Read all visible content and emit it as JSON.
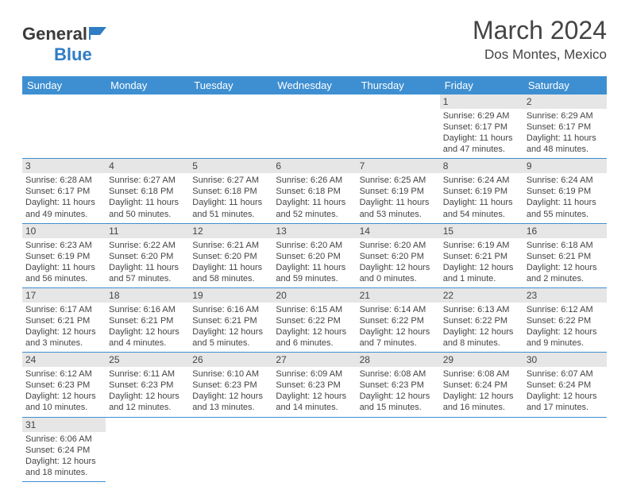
{
  "brand": {
    "name_a": "General",
    "name_b": "Blue"
  },
  "header": {
    "month_title": "March 2024",
    "location": "Dos Montes, Mexico"
  },
  "colors": {
    "header_bg": "#3e8fd1",
    "header_text": "#ffffff",
    "daynum_bg": "#e6e6e6",
    "border": "#3e8fd1",
    "text": "#444444",
    "logo_blue": "#2f7dc4"
  },
  "weekdays": [
    "Sunday",
    "Monday",
    "Tuesday",
    "Wednesday",
    "Thursday",
    "Friday",
    "Saturday"
  ],
  "leading_blanks": 5,
  "days": [
    {
      "n": "1",
      "sunrise": "Sunrise: 6:29 AM",
      "sunset": "Sunset: 6:17 PM",
      "day1": "Daylight: 11 hours",
      "day2": "and 47 minutes."
    },
    {
      "n": "2",
      "sunrise": "Sunrise: 6:29 AM",
      "sunset": "Sunset: 6:17 PM",
      "day1": "Daylight: 11 hours",
      "day2": "and 48 minutes."
    },
    {
      "n": "3",
      "sunrise": "Sunrise: 6:28 AM",
      "sunset": "Sunset: 6:17 PM",
      "day1": "Daylight: 11 hours",
      "day2": "and 49 minutes."
    },
    {
      "n": "4",
      "sunrise": "Sunrise: 6:27 AM",
      "sunset": "Sunset: 6:18 PM",
      "day1": "Daylight: 11 hours",
      "day2": "and 50 minutes."
    },
    {
      "n": "5",
      "sunrise": "Sunrise: 6:27 AM",
      "sunset": "Sunset: 6:18 PM",
      "day1": "Daylight: 11 hours",
      "day2": "and 51 minutes."
    },
    {
      "n": "6",
      "sunrise": "Sunrise: 6:26 AM",
      "sunset": "Sunset: 6:18 PM",
      "day1": "Daylight: 11 hours",
      "day2": "and 52 minutes."
    },
    {
      "n": "7",
      "sunrise": "Sunrise: 6:25 AM",
      "sunset": "Sunset: 6:19 PM",
      "day1": "Daylight: 11 hours",
      "day2": "and 53 minutes."
    },
    {
      "n": "8",
      "sunrise": "Sunrise: 6:24 AM",
      "sunset": "Sunset: 6:19 PM",
      "day1": "Daylight: 11 hours",
      "day2": "and 54 minutes."
    },
    {
      "n": "9",
      "sunrise": "Sunrise: 6:24 AM",
      "sunset": "Sunset: 6:19 PM",
      "day1": "Daylight: 11 hours",
      "day2": "and 55 minutes."
    },
    {
      "n": "10",
      "sunrise": "Sunrise: 6:23 AM",
      "sunset": "Sunset: 6:19 PM",
      "day1": "Daylight: 11 hours",
      "day2": "and 56 minutes."
    },
    {
      "n": "11",
      "sunrise": "Sunrise: 6:22 AM",
      "sunset": "Sunset: 6:20 PM",
      "day1": "Daylight: 11 hours",
      "day2": "and 57 minutes."
    },
    {
      "n": "12",
      "sunrise": "Sunrise: 6:21 AM",
      "sunset": "Sunset: 6:20 PM",
      "day1": "Daylight: 11 hours",
      "day2": "and 58 minutes."
    },
    {
      "n": "13",
      "sunrise": "Sunrise: 6:20 AM",
      "sunset": "Sunset: 6:20 PM",
      "day1": "Daylight: 11 hours",
      "day2": "and 59 minutes."
    },
    {
      "n": "14",
      "sunrise": "Sunrise: 6:20 AM",
      "sunset": "Sunset: 6:20 PM",
      "day1": "Daylight: 12 hours",
      "day2": "and 0 minutes."
    },
    {
      "n": "15",
      "sunrise": "Sunrise: 6:19 AM",
      "sunset": "Sunset: 6:21 PM",
      "day1": "Daylight: 12 hours",
      "day2": "and 1 minute."
    },
    {
      "n": "16",
      "sunrise": "Sunrise: 6:18 AM",
      "sunset": "Sunset: 6:21 PM",
      "day1": "Daylight: 12 hours",
      "day2": "and 2 minutes."
    },
    {
      "n": "17",
      "sunrise": "Sunrise: 6:17 AM",
      "sunset": "Sunset: 6:21 PM",
      "day1": "Daylight: 12 hours",
      "day2": "and 3 minutes."
    },
    {
      "n": "18",
      "sunrise": "Sunrise: 6:16 AM",
      "sunset": "Sunset: 6:21 PM",
      "day1": "Daylight: 12 hours",
      "day2": "and 4 minutes."
    },
    {
      "n": "19",
      "sunrise": "Sunrise: 6:16 AM",
      "sunset": "Sunset: 6:21 PM",
      "day1": "Daylight: 12 hours",
      "day2": "and 5 minutes."
    },
    {
      "n": "20",
      "sunrise": "Sunrise: 6:15 AM",
      "sunset": "Sunset: 6:22 PM",
      "day1": "Daylight: 12 hours",
      "day2": "and 6 minutes."
    },
    {
      "n": "21",
      "sunrise": "Sunrise: 6:14 AM",
      "sunset": "Sunset: 6:22 PM",
      "day1": "Daylight: 12 hours",
      "day2": "and 7 minutes."
    },
    {
      "n": "22",
      "sunrise": "Sunrise: 6:13 AM",
      "sunset": "Sunset: 6:22 PM",
      "day1": "Daylight: 12 hours",
      "day2": "and 8 minutes."
    },
    {
      "n": "23",
      "sunrise": "Sunrise: 6:12 AM",
      "sunset": "Sunset: 6:22 PM",
      "day1": "Daylight: 12 hours",
      "day2": "and 9 minutes."
    },
    {
      "n": "24",
      "sunrise": "Sunrise: 6:12 AM",
      "sunset": "Sunset: 6:23 PM",
      "day1": "Daylight: 12 hours",
      "day2": "and 10 minutes."
    },
    {
      "n": "25",
      "sunrise": "Sunrise: 6:11 AM",
      "sunset": "Sunset: 6:23 PM",
      "day1": "Daylight: 12 hours",
      "day2": "and 12 minutes."
    },
    {
      "n": "26",
      "sunrise": "Sunrise: 6:10 AM",
      "sunset": "Sunset: 6:23 PM",
      "day1": "Daylight: 12 hours",
      "day2": "and 13 minutes."
    },
    {
      "n": "27",
      "sunrise": "Sunrise: 6:09 AM",
      "sunset": "Sunset: 6:23 PM",
      "day1": "Daylight: 12 hours",
      "day2": "and 14 minutes."
    },
    {
      "n": "28",
      "sunrise": "Sunrise: 6:08 AM",
      "sunset": "Sunset: 6:23 PM",
      "day1": "Daylight: 12 hours",
      "day2": "and 15 minutes."
    },
    {
      "n": "29",
      "sunrise": "Sunrise: 6:08 AM",
      "sunset": "Sunset: 6:24 PM",
      "day1": "Daylight: 12 hours",
      "day2": "and 16 minutes."
    },
    {
      "n": "30",
      "sunrise": "Sunrise: 6:07 AM",
      "sunset": "Sunset: 6:24 PM",
      "day1": "Daylight: 12 hours",
      "day2": "and 17 minutes."
    },
    {
      "n": "31",
      "sunrise": "Sunrise: 6:06 AM",
      "sunset": "Sunset: 6:24 PM",
      "day1": "Daylight: 12 hours",
      "day2": "and 18 minutes."
    }
  ]
}
